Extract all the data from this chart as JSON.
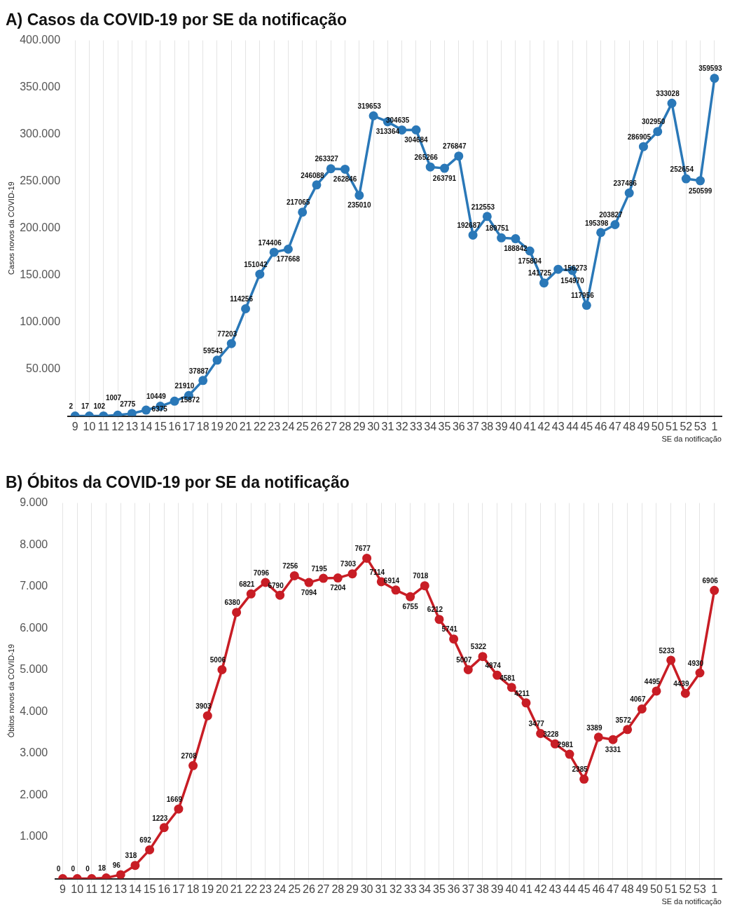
{
  "chart_data": [
    {
      "type": "line",
      "title": "A) Casos da COVID-19 por SE da notificação",
      "xlabel": "SE da notificação",
      "ylabel": "Casos novos da COVID-19",
      "categories": [
        "9",
        "10",
        "11",
        "12",
        "13",
        "14",
        "15",
        "16",
        "17",
        "18",
        "19",
        "20",
        "21",
        "22",
        "23",
        "24",
        "25",
        "26",
        "27",
        "28",
        "29",
        "30",
        "31",
        "32",
        "33",
        "34",
        "35",
        "36",
        "37",
        "38",
        "39",
        "40",
        "41",
        "42",
        "43",
        "44",
        "45",
        "46",
        "47",
        "48",
        "49",
        "50",
        "51",
        "52",
        "53",
        "1"
      ],
      "series": [
        {
          "color": "#2a78b8",
          "values": [
            2,
            17,
            102,
            1007,
            2775,
            6375,
            10449,
            15872,
            21910,
            37887,
            59543,
            77203,
            114256,
            151042,
            174406,
            177668,
            217065,
            246088,
            263327,
            262846,
            235010,
            319653,
            313364,
            304635,
            304684,
            265266,
            263791,
            276847,
            192687,
            212553,
            189751,
            188842,
            175804,
            141725,
            156273,
            154970,
            117956,
            195398,
            203827,
            237486,
            286905,
            302950,
            333028,
            252654,
            250599,
            359593
          ]
        }
      ],
      "ylim": [
        0,
        400000
      ],
      "yticks": [
        {
          "value": 50000,
          "label": "50.000"
        },
        {
          "value": 100000,
          "label": "100.000"
        },
        {
          "value": 150000,
          "label": "150.000"
        },
        {
          "value": 200000,
          "label": "200.000"
        },
        {
          "value": 250000,
          "label": "250.000"
        },
        {
          "value": 300000,
          "label": "300.000"
        },
        {
          "value": 350000,
          "label": "350.000"
        },
        {
          "value": 400000,
          "label": "400.000"
        }
      ],
      "grid": "x",
      "legend": false,
      "marker": "circle",
      "line_style": "solid",
      "data_labels": true
    },
    {
      "type": "line",
      "title": "B) Óbitos da COVID-19 por SE da notificação",
      "xlabel": "SE da notificação",
      "ylabel": "Óbitos novos da COVID-19",
      "categories": [
        "9",
        "10",
        "11",
        "12",
        "13",
        "14",
        "15",
        "16",
        "17",
        "18",
        "19",
        "20",
        "21",
        "22",
        "23",
        "24",
        "25",
        "26",
        "27",
        "28",
        "29",
        "30",
        "31",
        "32",
        "33",
        "34",
        "35",
        "36",
        "37",
        "38",
        "39",
        "40",
        "41",
        "42",
        "43",
        "44",
        "45",
        "46",
        "47",
        "48",
        "49",
        "50",
        "51",
        "52",
        "53",
        "1"
      ],
      "series": [
        {
          "color": "#c81d25",
          "values": [
            0,
            0,
            0,
            18,
            96,
            318,
            692,
            1223,
            1669,
            2708,
            3903,
            5006,
            6380,
            6821,
            7096,
            6790,
            7256,
            7094,
            7195,
            7204,
            7303,
            7677,
            7114,
            6914,
            6755,
            7018,
            6212,
            5741,
            5007,
            5322,
            4874,
            4581,
            4211,
            3477,
            3228,
            2981,
            2385,
            3389,
            3331,
            3572,
            4067,
            4495,
            5233,
            4439,
            4930,
            6906
          ]
        }
      ],
      "ylim": [
        0,
        9000
      ],
      "yticks": [
        {
          "value": 1000,
          "label": "1.000"
        },
        {
          "value": 2000,
          "label": "2.000"
        },
        {
          "value": 3000,
          "label": "3.000"
        },
        {
          "value": 4000,
          "label": "4.000"
        },
        {
          "value": 5000,
          "label": "5.000"
        },
        {
          "value": 6000,
          "label": "6.000"
        },
        {
          "value": 7000,
          "label": "7.000"
        },
        {
          "value": 8000,
          "label": "8.000"
        },
        {
          "value": 9000,
          "label": "9.000"
        }
      ],
      "grid": "x",
      "legend": false,
      "marker": "circle",
      "line_style": "solid",
      "data_labels": true
    }
  ]
}
